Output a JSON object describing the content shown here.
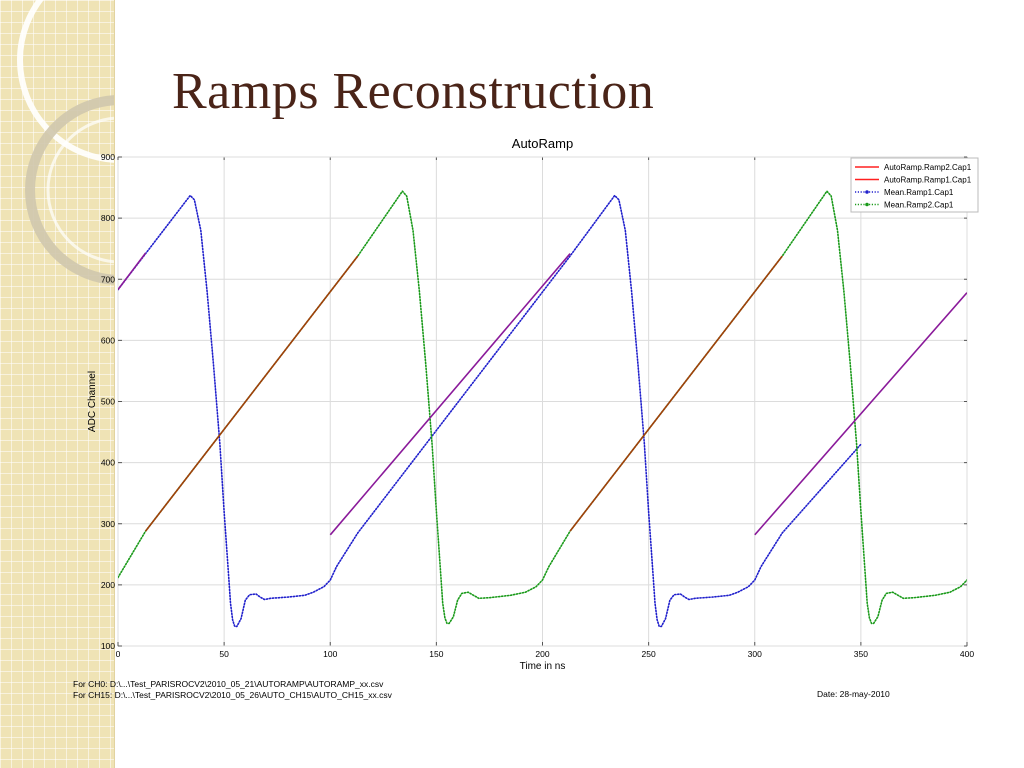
{
  "slide": {
    "title": "Ramps Reconstruction"
  },
  "footer": {
    "line1": "For CH0: D:\\...\\Test_PARISROCV2\\2010_05_21\\AUTORAMP\\AUTORAMP_xx.csv",
    "line2": "For CH15: D:\\...\\Test_PARISROCV2\\2010_05_26\\AUTO_CH15\\AUTO_CH15_xx.csv",
    "date": "Date: 28-may-2010"
  },
  "colors": {
    "title": "#4a2418",
    "red": "#ff2020",
    "blue": "#2020cc",
    "green": "#1a9a1a",
    "decor": "#efe3b5"
  },
  "chart_data": {
    "type": "line",
    "title": "AutoRamp",
    "xlabel": "Time in ns",
    "ylabel": "ADC Channel",
    "xlim": [
      0,
      400
    ],
    "ylim": [
      100,
      900
    ],
    "xticks": [
      0,
      50,
      100,
      150,
      200,
      250,
      300,
      350,
      400
    ],
    "yticks": [
      100,
      200,
      300,
      400,
      500,
      600,
      700,
      800,
      900
    ],
    "grid": true,
    "legend_position": "top-right",
    "legend": [
      {
        "label": "AutoRamp.Ramp2.Cap1",
        "style": "solid",
        "color": "#ff2020"
      },
      {
        "label": "AutoRamp.Ramp1.Cap1",
        "style": "solid",
        "color": "#ff2020"
      },
      {
        "label": "Mean.Ramp1.Cap1",
        "style": "dotted",
        "color": "#2020cc"
      },
      {
        "label": "Mean.Ramp2.Cap1",
        "style": "dotted",
        "color": "#1a9a1a"
      }
    ],
    "series": [
      {
        "name": "AutoRamp.Ramp1.Cap1",
        "style": "solid",
        "color": "#8a1a9a",
        "segments": [
          [
            [
              0,
              683
            ],
            [
              13,
              743
            ]
          ],
          [
            [
              100,
              282
            ],
            [
              213,
              742
            ]
          ],
          [
            [
              300,
              282
            ],
            [
              400,
              678
            ]
          ]
        ]
      },
      {
        "name": "AutoRamp.Ramp2.Cap1",
        "style": "solid",
        "color": "#a0400a",
        "segments": [
          [
            [
              13,
              288
            ],
            [
              113,
              738
            ]
          ],
          [
            [
              213,
              288
            ],
            [
              313,
              738
            ]
          ]
        ]
      },
      {
        "name": "Mean.Ramp1.Cap1",
        "style": "dotted",
        "color": "#2020cc",
        "segments": [
          [
            [
              0,
              683
            ],
            [
              34,
              837
            ],
            [
              36,
              830
            ],
            [
              39,
              780
            ],
            [
              42,
              680
            ],
            [
              45,
              560
            ],
            [
              48,
              430
            ],
            [
              50,
              320
            ],
            [
              52,
              220
            ],
            [
              53,
              170
            ],
            [
              54,
              143
            ],
            [
              55,
              132
            ],
            [
              56,
              132
            ],
            [
              58,
              145
            ],
            [
              60,
              175
            ],
            [
              62,
              184
            ],
            [
              65,
              185
            ],
            [
              67,
              180
            ],
            [
              69,
              176
            ],
            [
              72,
              178
            ],
            [
              80,
              180
            ],
            [
              88,
              183
            ],
            [
              92,
              188
            ],
            [
              97,
              197
            ],
            [
              100,
              208
            ],
            [
              103,
              230
            ],
            [
              113,
              285
            ],
            [
              213,
              738
            ],
            [
              234,
              837
            ],
            [
              236,
              830
            ],
            [
              239,
              780
            ],
            [
              242,
              680
            ],
            [
              245,
              560
            ],
            [
              248,
              430
            ],
            [
              250,
              320
            ],
            [
              252,
              220
            ],
            [
              253,
              170
            ],
            [
              254,
              143
            ],
            [
              255,
              132
            ],
            [
              256,
              132
            ],
            [
              258,
              145
            ],
            [
              260,
              175
            ],
            [
              262,
              184
            ],
            [
              265,
              185
            ],
            [
              267,
              180
            ],
            [
              269,
              176
            ],
            [
              272,
              178
            ],
            [
              280,
              180
            ],
            [
              288,
              183
            ],
            [
              292,
              188
            ],
            [
              297,
              197
            ],
            [
              300,
              208
            ],
            [
              303,
              230
            ],
            [
              313,
              285
            ],
            [
              350,
              430
            ]
          ]
        ]
      },
      {
        "name": "Mean.Ramp2.Cap1",
        "style": "dotted",
        "color": "#1a9a1a",
        "segments": [
          [
            [
              0,
              212
            ],
            [
              13,
              288
            ],
            [
              113,
              738
            ],
            [
              134,
              844
            ],
            [
              136,
              836
            ],
            [
              139,
              780
            ],
            [
              142,
              680
            ],
            [
              145,
              560
            ],
            [
              148,
              430
            ],
            [
              150,
              320
            ],
            [
              152,
              220
            ],
            [
              153,
              170
            ],
            [
              154,
              146
            ],
            [
              155,
              137
            ],
            [
              156,
              137
            ],
            [
              158,
              148
            ],
            [
              160,
              175
            ],
            [
              162,
              186
            ],
            [
              165,
              188
            ],
            [
              167,
              184
            ],
            [
              170,
              178
            ],
            [
              175,
              179
            ],
            [
              185,
              183
            ],
            [
              192,
              188
            ],
            [
              197,
              197
            ],
            [
              200,
              208
            ],
            [
              203,
              230
            ],
            [
              213,
              288
            ],
            [
              313,
              738
            ],
            [
              334,
              844
            ],
            [
              336,
              836
            ],
            [
              339,
              780
            ],
            [
              342,
              680
            ],
            [
              345,
              560
            ],
            [
              348,
              430
            ],
            [
              350,
              320
            ],
            [
              352,
              220
            ],
            [
              353,
              170
            ],
            [
              354,
              146
            ],
            [
              355,
              137
            ],
            [
              356,
              137
            ],
            [
              358,
              148
            ],
            [
              360,
              175
            ],
            [
              362,
              186
            ],
            [
              365,
              188
            ],
            [
              367,
              184
            ],
            [
              370,
              178
            ],
            [
              375,
              179
            ],
            [
              385,
              183
            ],
            [
              392,
              188
            ],
            [
              397,
              197
            ],
            [
              400,
              208
            ]
          ]
        ]
      }
    ]
  }
}
